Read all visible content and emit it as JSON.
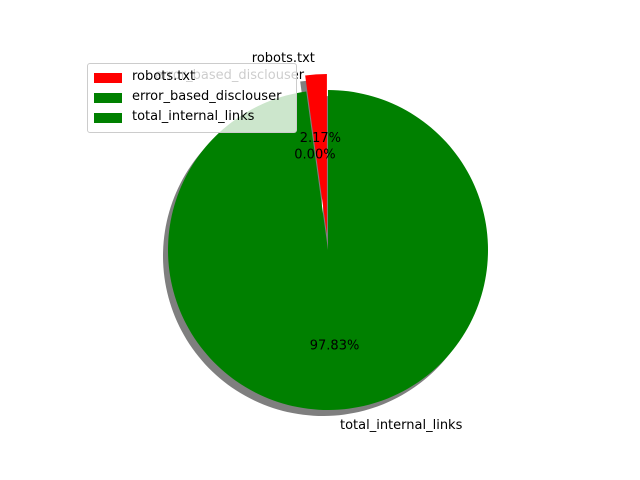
{
  "chart_data": {
    "type": "pie",
    "title": "",
    "labels": [
      "robots.txt",
      "error_based_disclouser",
      "total_internal_links"
    ],
    "values": [
      2.17,
      0.0,
      97.83
    ],
    "pct_labels": [
      "2.17%",
      "0.00%",
      "97.83%"
    ],
    "colors": [
      "#ff0000",
      "#008000",
      "#008000"
    ],
    "explode": [
      0.1,
      0.0,
      0.0
    ],
    "shadow": true,
    "start_angle": 90,
    "legend": {
      "placement": "upper-left",
      "entries": [
        "robots.txt",
        "error_based_disclouser",
        "total_internal_links"
      ]
    }
  }
}
